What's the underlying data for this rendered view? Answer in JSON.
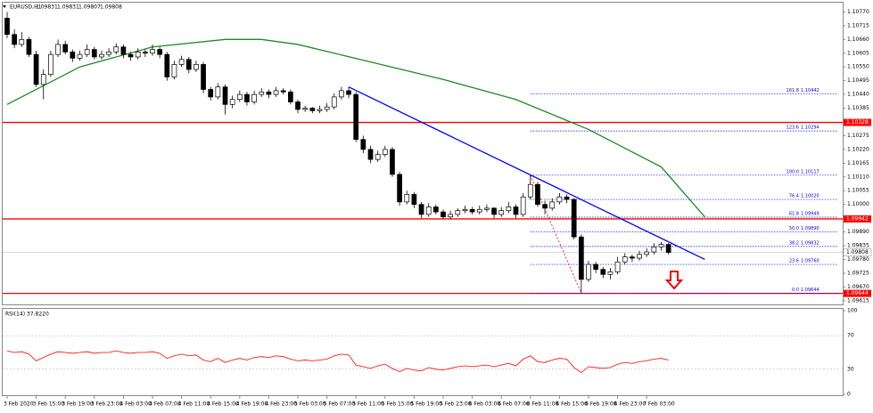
{
  "chart_data": {
    "type": "candlestick",
    "header": {
      "symbol": "EURUSD,H1",
      "quote": [
        1.09831,
        1.09831,
        1.09807,
        1.09808
      ]
    },
    "categories": [
      "3 Feb 2020",
      null,
      null,
      null,
      "3 Feb 15:00",
      null,
      null,
      null,
      "3 Feb 19:00",
      null,
      null,
      null,
      "3 Feb 23:00",
      null,
      null,
      null,
      "4 Feb 03:00",
      null,
      null,
      null,
      "4 Feb 07:00",
      null,
      null,
      null,
      "4 Feb 11:00",
      null,
      null,
      null,
      "4 Feb 15:00",
      null,
      null,
      null,
      "4 Feb 19:00",
      null,
      null,
      null,
      "4 Feb 23:00",
      null,
      null,
      null,
      "5 Feb 03:00",
      null,
      null,
      null,
      "5 Feb 07:00",
      null,
      null,
      null,
      "5 Feb 11:00",
      null,
      null,
      null,
      "5 Feb 15:00",
      null,
      null,
      null,
      "5 Feb 19:00",
      null,
      null,
      null,
      "5 Feb 23:00",
      null,
      null,
      null,
      "6 Feb 03:00",
      null,
      null,
      null,
      "6 Feb 07:00",
      null,
      null,
      null,
      "6 Feb 11:00",
      null,
      null,
      null,
      "6 Feb 15:00",
      null,
      null,
      null,
      "6 Feb 19:00",
      null,
      null,
      null,
      "6 Feb 23:00",
      null,
      null,
      null,
      "7 Feb 03:00",
      null,
      null,
      null
    ],
    "ohlc": [
      [
        1.10745,
        1.1077,
        1.10665,
        1.1068
      ],
      [
        1.1068,
        1.107,
        1.10625,
        1.1064
      ],
      [
        1.1064,
        1.1069,
        1.1063,
        1.1066
      ],
      [
        1.1066,
        1.1067,
        1.1059,
        1.106
      ],
      [
        1.106,
        1.10615,
        1.1047,
        1.1048
      ],
      [
        1.1048,
        1.1054,
        1.1042,
        1.1052
      ],
      [
        1.1052,
        1.10615,
        1.1051,
        1.106
      ],
      [
        1.106,
        1.1066,
        1.1059,
        1.1064
      ],
      [
        1.1064,
        1.10655,
        1.106,
        1.1061
      ],
      [
        1.1061,
        1.1062,
        1.1057,
        1.10585
      ],
      [
        1.10585,
        1.10615,
        1.10575,
        1.106
      ],
      [
        1.106,
        1.1064,
        1.1059,
        1.1062
      ],
      [
        1.1062,
        1.1063,
        1.1058,
        1.1059
      ],
      [
        1.1059,
        1.10615,
        1.1058,
        1.106
      ],
      [
        1.106,
        1.10625,
        1.1059,
        1.1061
      ],
      [
        1.1061,
        1.10645,
        1.106,
        1.1063
      ],
      [
        1.1063,
        1.1064,
        1.10585,
        1.106
      ],
      [
        1.106,
        1.1061,
        1.10575,
        1.1059
      ],
      [
        1.1059,
        1.10625,
        1.1058,
        1.1061
      ],
      [
        1.1061,
        1.1062,
        1.1059,
        1.10605
      ],
      [
        1.10605,
        1.1064,
        1.10595,
        1.1062
      ],
      [
        1.1062,
        1.1063,
        1.10585,
        1.106
      ],
      [
        1.106,
        1.1061,
        1.10495,
        1.1051
      ],
      [
        1.1051,
        1.10575,
        1.105,
        1.1056
      ],
      [
        1.1056,
        1.10595,
        1.1055,
        1.1058
      ],
      [
        1.1058,
        1.1059,
        1.10525,
        1.1054
      ],
      [
        1.1054,
        1.10575,
        1.1053,
        1.1056
      ],
      [
        1.1056,
        1.1057,
        1.10445,
        1.1046
      ],
      [
        1.1046,
        1.1047,
        1.10415,
        1.1043
      ],
      [
        1.1043,
        1.10485,
        1.1042,
        1.1047
      ],
      [
        1.1047,
        1.1048,
        1.1036,
        1.104
      ],
      [
        1.104,
        1.10435,
        1.10385,
        1.1042
      ],
      [
        1.1042,
        1.10455,
        1.1041,
        1.1044
      ],
      [
        1.1044,
        1.1045,
        1.10395,
        1.1041
      ],
      [
        1.1041,
        1.10455,
        1.104,
        1.1044
      ],
      [
        1.1044,
        1.10465,
        1.1043,
        1.1045
      ],
      [
        1.1045,
        1.1046,
        1.10425,
        1.1044
      ],
      [
        1.1044,
        1.1047,
        1.1043,
        1.10455
      ],
      [
        1.10455,
        1.10465,
        1.1044,
        1.1045
      ],
      [
        1.1045,
        1.1046,
        1.104,
        1.1041
      ],
      [
        1.1041,
        1.1042,
        1.10365,
        1.1038
      ],
      [
        1.1038,
        1.10395,
        1.1037,
        1.10385
      ],
      [
        1.10385,
        1.1039,
        1.10365,
        1.10375
      ],
      [
        1.10375,
        1.10395,
        1.10365,
        1.1038
      ],
      [
        1.1038,
        1.10405,
        1.1037,
        1.1039
      ],
      [
        1.1039,
        1.10445,
        1.1038,
        1.1043
      ],
      [
        1.1043,
        1.1047,
        1.1042,
        1.10455
      ],
      [
        1.10455,
        1.1047,
        1.10425,
        1.1044
      ],
      [
        1.1044,
        1.1045,
        1.1025,
        1.1026
      ],
      [
        1.1026,
        1.10275,
        1.10205,
        1.1022
      ],
      [
        1.1022,
        1.10235,
        1.10165,
        1.1018
      ],
      [
        1.1018,
        1.10215,
        1.1017,
        1.102
      ],
      [
        1.102,
        1.10235,
        1.1019,
        1.1022
      ],
      [
        1.1022,
        1.1023,
        1.1011,
        1.1012
      ],
      [
        1.1012,
        1.1013,
        1.09995,
        1.1001
      ],
      [
        1.1001,
        1.10055,
        1.1,
        1.1004
      ],
      [
        1.1004,
        1.1005,
        1.09985,
        1.1
      ],
      [
        1.1,
        1.1001,
        1.09945,
        1.0996
      ],
      [
        1.0996,
        1.10005,
        1.0995,
        1.0999
      ],
      [
        1.0999,
        1.1,
        1.0996,
        1.0997
      ],
      [
        1.0997,
        1.0998,
        1.0994,
        1.0995
      ],
      [
        1.0995,
        1.09975,
        1.0994,
        1.0996
      ],
      [
        1.0996,
        1.09985,
        1.0995,
        1.09975
      ],
      [
        1.09975,
        1.09995,
        1.09965,
        1.0998
      ],
      [
        1.0998,
        1.0999,
        1.0996,
        1.0997
      ],
      [
        1.0997,
        1.09995,
        1.0996,
        1.0998
      ],
      [
        1.0998,
        1.1,
        1.0997,
        1.09985
      ],
      [
        1.09985,
        1.0999,
        1.09945,
        1.0996
      ],
      [
        1.0996,
        1.0999,
        1.0995,
        1.09975
      ],
      [
        1.09975,
        1.1001,
        1.09965,
        1.0999
      ],
      [
        1.0999,
        1.1,
        1.09945,
        1.0996
      ],
      [
        1.0996,
        1.10045,
        1.0995,
        1.1003
      ],
      [
        1.1003,
        1.10117,
        1.1002,
        1.1008
      ],
      [
        1.1008,
        1.1009,
        1.0999,
        1.1
      ],
      [
        1.1,
        1.10015,
        1.0996,
        1.09985
      ],
      [
        1.09985,
        1.10025,
        1.09975,
        1.1001
      ],
      [
        1.1001,
        1.10045,
        1.1,
        1.1003
      ],
      [
        1.1003,
        1.1004,
        1.10005,
        1.1002
      ],
      [
        1.1002,
        1.10025,
        1.0986,
        1.0987
      ],
      [
        1.0987,
        1.0988,
        1.09644,
        1.097
      ],
      [
        1.097,
        1.09775,
        1.0969,
        1.0976
      ],
      [
        1.0976,
        1.0977,
        1.09725,
        1.0974
      ],
      [
        1.0974,
        1.0975,
        1.09705,
        1.0972
      ],
      [
        1.0972,
        1.09745,
        1.097,
        1.0973
      ],
      [
        1.0973,
        1.0979,
        1.0972,
        1.0977
      ],
      [
        1.0977,
        1.09805,
        1.0976,
        1.0979
      ],
      [
        1.0979,
        1.098,
        1.0977,
        1.09785
      ],
      [
        1.09785,
        1.09815,
        1.09775,
        1.098
      ],
      [
        1.098,
        1.09825,
        1.0979,
        1.0981
      ],
      [
        1.0981,
        1.09845,
        1.098,
        1.0983
      ],
      [
        1.0983,
        1.0985,
        1.09815,
        1.0984
      ],
      [
        1.0984,
        1.09845,
        1.098,
        1.09808
      ]
    ],
    "bull_color": "#ffffff",
    "bear_color": "#000000",
    "ylim": [
      1.096,
      1.108
    ],
    "yticks": [
      {
        "value": 1.1077,
        "label": "1.10770"
      },
      1.10715,
      {
        "value": 1.1066,
        "label": "1.10660"
      },
      1.10605,
      {
        "value": 1.1055,
        "label": "1.10550"
      },
      1.10495,
      {
        "value": 1.1044,
        "label": "1.10440"
      },
      1.10385,
      1.10275,
      {
        "value": 1.1022,
        "label": "1.10220"
      },
      1.10165,
      {
        "value": 1.1011,
        "label": "1.10110"
      },
      1.10055,
      {
        "value": 1.1,
        "label": "1.10000"
      },
      {
        "value": 1.0989,
        "label": "1.09890"
      },
      1.09835,
      {
        "value": 1.0978,
        "label": "1.09780"
      },
      1.09725,
      {
        "value": 1.0967,
        "label": "1.09670"
      },
      1.09615
    ],
    "levels": [
      1.10328,
      1.09942,
      1.09644
    ],
    "level_color": "#ff0000",
    "current_price": 1.09808,
    "moving_average": {
      "color": "#1f8a1f",
      "x": [
        0,
        10,
        20,
        30,
        35,
        40,
        50,
        60,
        70,
        80,
        90,
        96
      ],
      "values": [
        1.104,
        1.1055,
        1.1063,
        1.1066,
        1.1066,
        1.1064,
        1.1057,
        1.105,
        1.1042,
        1.103,
        1.1015,
        1.0995
      ]
    },
    "trendline": {
      "color": "#0000ff",
      "x": [
        47,
        96
      ],
      "values": [
        1.1047,
        1.0978
      ]
    },
    "fib_swing": {
      "color": "#ff0000",
      "x": [
        72,
        79
      ],
      "values": [
        1.10117,
        1.09644
      ]
    },
    "fib_levels": [
      {
        "level": "161.8",
        "price": 1.10442
      },
      {
        "level": "123.6",
        "price": 1.10294
      },
      {
        "level": "100.0",
        "price": 1.10117
      },
      {
        "level": "76.4",
        "price": {
          "value": 1.1002,
          "label": "1.10020"
        }
      },
      {
        "level": "61.8",
        "price": 1.09949
      },
      {
        "level": "50.0",
        "price": {
          "value": 1.0989,
          "label": "1.09890"
        }
      },
      {
        "level": "38.2",
        "price": 1.09832
      },
      {
        "level": "23.6",
        "price": {
          "value": 1.0976,
          "label": "1.09760"
        }
      },
      {
        "level": "0.0",
        "price": 1.09644
      }
    ],
    "fib_color": "#0000ff",
    "rsi": {
      "title": "RSI(14) 37.8220",
      "color": "#ff0000",
      "ylim": [
        0,
        100
      ],
      "yticks": [
        100,
        70,
        30,
        0
      ],
      "values": [
        52,
        50,
        51,
        48,
        40,
        44,
        48,
        51,
        50,
        49,
        50,
        51,
        49,
        50,
        50,
        52,
        50,
        49,
        50,
        50,
        51,
        49,
        43,
        46,
        48,
        46,
        47,
        41,
        39,
        43,
        38,
        41,
        43,
        41,
        44,
        45,
        44,
        46,
        45,
        42,
        40,
        41,
        40,
        41,
        42,
        46,
        48,
        47,
        35,
        33,
        31,
        34,
        36,
        31,
        27,
        31,
        29,
        28,
        32,
        30,
        29,
        31,
        33,
        34,
        33,
        34,
        35,
        33,
        35,
        37,
        34,
        42,
        46,
        39,
        38,
        41,
        43,
        42,
        32,
        26,
        33,
        32,
        31,
        32,
        36,
        38,
        37,
        39,
        40,
        42,
        43,
        41
      ]
    }
  }
}
